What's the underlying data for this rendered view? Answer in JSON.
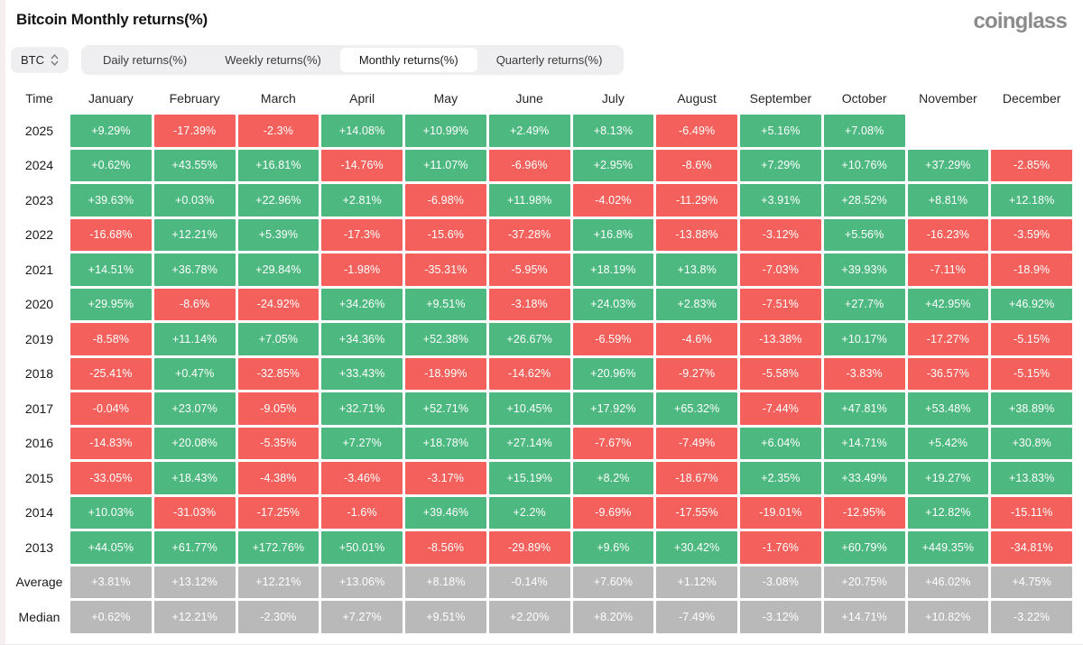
{
  "page": {
    "title": "Bitcoin Monthly returns(%)",
    "brand": "coinglass"
  },
  "controls": {
    "coin_select": {
      "value": "BTC"
    },
    "tabs": [
      {
        "label": "Daily returns(%)",
        "active": false
      },
      {
        "label": "Weekly returns(%)",
        "active": false
      },
      {
        "label": "Monthly returns(%)",
        "active": true
      },
      {
        "label": "Quarterly returns(%)",
        "active": false
      }
    ]
  },
  "colors": {
    "positive": "#4db980",
    "negative": "#f4615c",
    "neutral": "#b9b9b9"
  },
  "table": {
    "time_header": "Time",
    "columns": [
      "January",
      "February",
      "March",
      "April",
      "May",
      "June",
      "July",
      "August",
      "September",
      "October",
      "November",
      "December"
    ],
    "rows": [
      {
        "label": "2025",
        "type": "year",
        "values": [
          "+9.29%",
          "-17.39%",
          "-2.3%",
          "+14.08%",
          "+10.99%",
          "+2.49%",
          "+8.13%",
          "-6.49%",
          "+5.16%",
          "+7.08%",
          "",
          ""
        ]
      },
      {
        "label": "2024",
        "type": "year",
        "values": [
          "+0.62%",
          "+43.55%",
          "+16.81%",
          "-14.76%",
          "+11.07%",
          "-6.96%",
          "+2.95%",
          "-8.6%",
          "+7.29%",
          "+10.76%",
          "+37.29%",
          "-2.85%"
        ]
      },
      {
        "label": "2023",
        "type": "year",
        "values": [
          "+39.63%",
          "+0.03%",
          "+22.96%",
          "+2.81%",
          "-6.98%",
          "+11.98%",
          "-4.02%",
          "-11.29%",
          "+3.91%",
          "+28.52%",
          "+8.81%",
          "+12.18%"
        ]
      },
      {
        "label": "2022",
        "type": "year",
        "values": [
          "-16.68%",
          "+12.21%",
          "+5.39%",
          "-17.3%",
          "-15.6%",
          "-37.28%",
          "+16.8%",
          "-13.88%",
          "-3.12%",
          "+5.56%",
          "-16.23%",
          "-3.59%"
        ]
      },
      {
        "label": "2021",
        "type": "year",
        "values": [
          "+14.51%",
          "+36.78%",
          "+29.84%",
          "-1.98%",
          "-35.31%",
          "-5.95%",
          "+18.19%",
          "+13.8%",
          "-7.03%",
          "+39.93%",
          "-7.11%",
          "-18.9%"
        ]
      },
      {
        "label": "2020",
        "type": "year",
        "values": [
          "+29.95%",
          "-8.6%",
          "-24.92%",
          "+34.26%",
          "+9.51%",
          "-3.18%",
          "+24.03%",
          "+2.83%",
          "-7.51%",
          "+27.7%",
          "+42.95%",
          "+46.92%"
        ]
      },
      {
        "label": "2019",
        "type": "year",
        "values": [
          "-8.58%",
          "+11.14%",
          "+7.05%",
          "+34.36%",
          "+52.38%",
          "+26.67%",
          "-6.59%",
          "-4.6%",
          "-13.38%",
          "+10.17%",
          "-17.27%",
          "-5.15%"
        ]
      },
      {
        "label": "2018",
        "type": "year",
        "values": [
          "-25.41%",
          "+0.47%",
          "-32.85%",
          "+33.43%",
          "-18.99%",
          "-14.62%",
          "+20.96%",
          "-9.27%",
          "-5.58%",
          "-3.83%",
          "-36.57%",
          "-5.15%"
        ]
      },
      {
        "label": "2017",
        "type": "year",
        "values": [
          "-0.04%",
          "+23.07%",
          "-9.05%",
          "+32.71%",
          "+52.71%",
          "+10.45%",
          "+17.92%",
          "+65.32%",
          "-7.44%",
          "+47.81%",
          "+53.48%",
          "+38.89%"
        ]
      },
      {
        "label": "2016",
        "type": "year",
        "values": [
          "-14.83%",
          "+20.08%",
          "-5.35%",
          "+7.27%",
          "+18.78%",
          "+27.14%",
          "-7.67%",
          "-7.49%",
          "+6.04%",
          "+14.71%",
          "+5.42%",
          "+30.8%"
        ]
      },
      {
        "label": "2015",
        "type": "year",
        "values": [
          "-33.05%",
          "+18.43%",
          "-4.38%",
          "-3.46%",
          "-3.17%",
          "+15.19%",
          "+8.2%",
          "-18.67%",
          "+2.35%",
          "+33.49%",
          "+19.27%",
          "+13.83%"
        ]
      },
      {
        "label": "2014",
        "type": "year",
        "values": [
          "+10.03%",
          "-31.03%",
          "-17.25%",
          "-1.6%",
          "+39.46%",
          "+2.2%",
          "-9.69%",
          "-17.55%",
          "-19.01%",
          "-12.95%",
          "+12.82%",
          "-15.11%"
        ]
      },
      {
        "label": "2013",
        "type": "year",
        "values": [
          "+44.05%",
          "+61.77%",
          "+172.76%",
          "+50.01%",
          "-8.56%",
          "-29.89%",
          "+9.6%",
          "+30.42%",
          "-1.76%",
          "+60.79%",
          "+449.35%",
          "-34.81%"
        ]
      },
      {
        "label": "Average",
        "type": "summary",
        "values": [
          "+3.81%",
          "+13.12%",
          "+12.21%",
          "+13.06%",
          "+8.18%",
          "-0.14%",
          "+7.60%",
          "+1.12%",
          "-3.08%",
          "+20.75%",
          "+46.02%",
          "+4.75%"
        ]
      },
      {
        "label": "Median",
        "type": "summary",
        "values": [
          "+0.62%",
          "+12.21%",
          "-2.30%",
          "+7.27%",
          "+9.51%",
          "+2.20%",
          "+8.20%",
          "-7.49%",
          "-3.12%",
          "+14.71%",
          "+10.82%",
          "-3.22%"
        ]
      }
    ]
  }
}
